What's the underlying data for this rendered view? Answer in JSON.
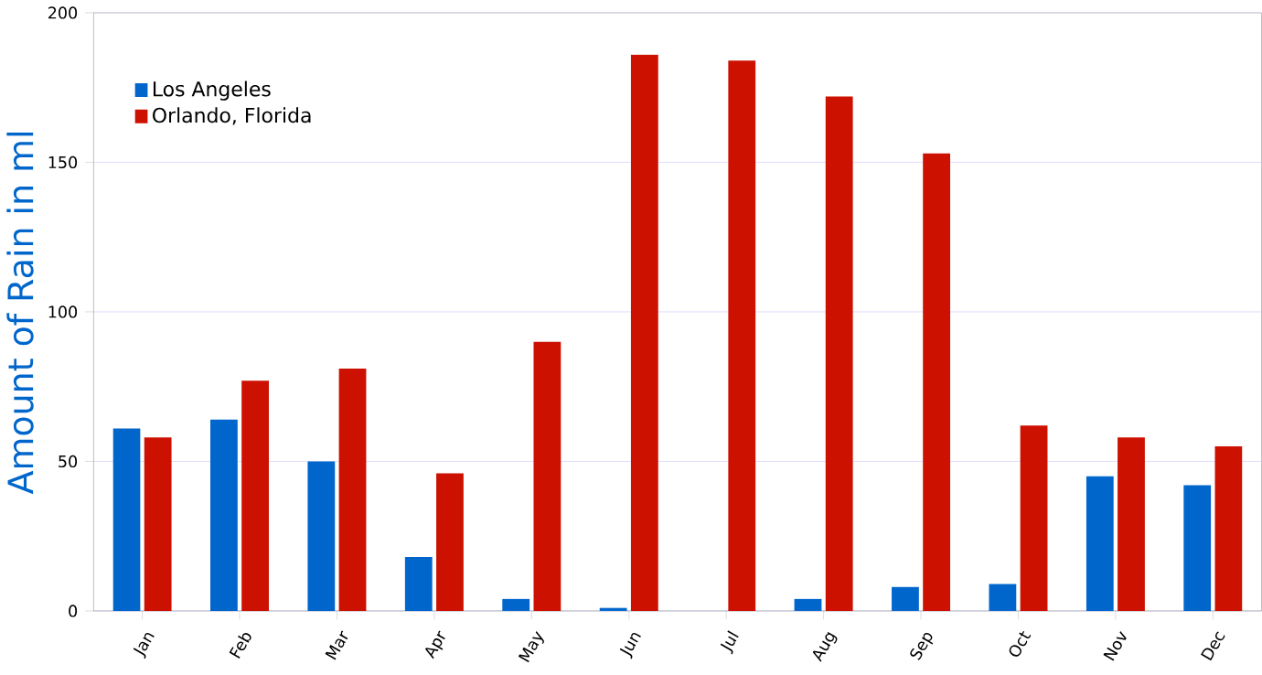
{
  "chart_data": {
    "type": "bar",
    "ylabel": "Amount of Rain in ml",
    "categories": [
      "Jan",
      "Feb",
      "Mar",
      "Apr",
      "May",
      "Jun",
      "Jul",
      "Aug",
      "Sep",
      "Oct",
      "Nov",
      "Dec"
    ],
    "series": [
      {
        "name": "Los Angeles",
        "color": "#0066cc",
        "values": [
          61,
          64,
          50,
          18,
          4,
          1,
          0,
          4,
          8,
          9,
          45,
          42
        ]
      },
      {
        "name": "Orlando, Florida",
        "color": "#cc1100",
        "values": [
          58,
          77,
          81,
          46,
          90,
          186,
          184,
          172,
          153,
          62,
          58,
          55
        ]
      }
    ],
    "ylim": [
      0,
      200
    ],
    "yticks": [
      0,
      50,
      100,
      150,
      200
    ],
    "grid": "y",
    "legend": "top left"
  }
}
